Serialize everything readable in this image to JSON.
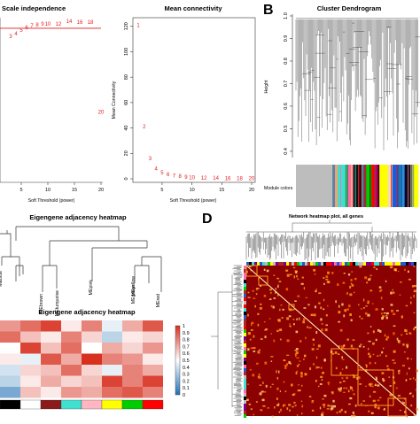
{
  "panel_labels": {
    "b": "B",
    "d": "D"
  },
  "chart_data": [
    {
      "id": "scale-independence",
      "type": "scatter",
      "title": "Scale independence",
      "xlabel": "Soft Threshold (power)",
      "x_ticks": [
        "5",
        "10",
        "15",
        "20"
      ],
      "xlim": [
        1,
        20
      ],
      "ylim": [
        -0.9,
        0.97
      ],
      "cutoff_line": 0.85,
      "points": [
        {
          "x": 3,
          "y": 0.76
        },
        {
          "x": 4,
          "y": 0.79
        },
        {
          "x": 5,
          "y": 0.83
        },
        {
          "x": 6,
          "y": 0.86
        },
        {
          "x": 7,
          "y": 0.88
        },
        {
          "x": 8,
          "y": 0.89
        },
        {
          "x": 9,
          "y": 0.9
        },
        {
          "x": 10,
          "y": 0.9
        },
        {
          "x": 12,
          "y": 0.9
        },
        {
          "x": 14,
          "y": 0.93
        },
        {
          "x": 16,
          "y": 0.92
        },
        {
          "x": 18,
          "y": 0.92
        },
        {
          "x": 20,
          "y": -0.1
        }
      ],
      "point_color": "#e31a1c",
      "line_color": "#e31a1c"
    },
    {
      "id": "mean-connectivity",
      "type": "scatter",
      "title": "Mean connectivity",
      "xlabel": "Soft Threshold (power)",
      "ylabel": "Mean Connectivity",
      "x_ticks": [
        "5",
        "10",
        "15",
        "20"
      ],
      "y_ticks": [
        "0",
        "20",
        "40",
        "60",
        "80",
        "100",
        "120"
      ],
      "xlim": [
        1,
        20
      ],
      "ylim": [
        0,
        124
      ],
      "points": [
        {
          "x": 1,
          "y": 121
        },
        {
          "x": 2,
          "y": 41
        },
        {
          "x": 3,
          "y": 16
        },
        {
          "x": 4,
          "y": 8
        },
        {
          "x": 5,
          "y": 5
        },
        {
          "x": 6,
          "y": 3.5
        },
        {
          "x": 7,
          "y": 2.5
        },
        {
          "x": 8,
          "y": 2
        },
        {
          "x": 9,
          "y": 1.5
        },
        {
          "x": 10,
          "y": 1.2
        },
        {
          "x": 12,
          "y": 0.8
        },
        {
          "x": 14,
          "y": 0.6
        },
        {
          "x": 16,
          "y": 0.5
        },
        {
          "x": 18,
          "y": 0.4
        },
        {
          "x": 20,
          "y": 0.3
        }
      ],
      "point_color": "#e31a1c"
    },
    {
      "id": "cluster-dendrogram",
      "type": "dendrogram",
      "title": "Cluster Dendrogram",
      "ylabel": "Height",
      "y_ticks": [
        "0.4",
        "0.5",
        "0.6",
        "0.7",
        "0.8",
        "0.9",
        "1.0"
      ],
      "ylim": [
        0.38,
        1.0
      ],
      "color_row_label": "Module colors",
      "module_colors": [
        {
          "color": "#bdbdbd",
          "weight": 14
        },
        {
          "color": "#7b68ee",
          "weight": 1
        },
        {
          "color": "#f4a460",
          "weight": 1
        },
        {
          "color": "#40e0d0",
          "weight": 3
        },
        {
          "color": "#228b22",
          "weight": 1
        },
        {
          "color": "#ff69b4",
          "weight": 2
        },
        {
          "color": "#111111",
          "weight": 3
        },
        {
          "color": "#a52a2a",
          "weight": 2
        },
        {
          "color": "#00cc00",
          "weight": 2
        },
        {
          "color": "#ff0000",
          "weight": 2
        },
        {
          "color": "#800080",
          "weight": 1
        },
        {
          "color": "#ffff00",
          "weight": 3
        },
        {
          "color": "#f5deb3",
          "weight": 2
        },
        {
          "color": "#1e5bd6",
          "weight": 5
        },
        {
          "color": "#111111",
          "weight": 2
        },
        {
          "color": "#87ceeb",
          "weight": 1
        },
        {
          "color": "#ffff00",
          "weight": 2
        }
      ]
    },
    {
      "id": "eigengene-dendrogram",
      "type": "dendrogram",
      "title": "Eigengene adjacency heatmap",
      "leaves": [
        "MEblue",
        "MEbrown",
        "MEturquoise",
        "MEpink",
        "MEyellow",
        "MEgreen",
        "MEred"
      ]
    },
    {
      "id": "eigengene-heatmap",
      "type": "heatmap",
      "title": "Eigengene adjacency heatmap",
      "colorbar_ticks": [
        "1",
        "0.9",
        "0.8",
        "0.7",
        "0.6",
        "0.5",
        "0.4",
        "0.3",
        "0.2",
        "0.1",
        "0"
      ],
      "colorbar_range": [
        0,
        1
      ],
      "module_strip": [
        "#000000",
        "#ffffff",
        "#8b1a1a",
        "#40e0d0",
        "#ffb6c1",
        "#ffff00",
        "#00cc00",
        "#ff0000"
      ],
      "values": [
        [
          0.75,
          0.85,
          0.95,
          0.55,
          0.8,
          0.45,
          0.7,
          0.9
        ],
        [
          0.85,
          0.65,
          0.55,
          0.8,
          0.6,
          0.35,
          0.55,
          0.6
        ],
        [
          0.5,
          0.95,
          0.65,
          0.85,
          0.5,
          0.7,
          0.6,
          0.75
        ],
        [
          0.55,
          0.45,
          0.9,
          0.7,
          1.0,
          0.8,
          0.75,
          0.55
        ],
        [
          0.4,
          0.6,
          0.65,
          0.85,
          0.6,
          0.45,
          0.8,
          0.7
        ],
        [
          0.35,
          0.55,
          0.7,
          0.6,
          0.65,
          0.95,
          0.8,
          0.95
        ],
        [
          0.2,
          0.65,
          0.55,
          0.75,
          0.7,
          0.85,
          0.9,
          0.8
        ]
      ]
    },
    {
      "id": "network-heatmap",
      "type": "heatmap",
      "title": "Network heatmap plot, all genes",
      "colors": {
        "low": "#ffffc8",
        "mid": "#ff9a1f",
        "high": "#8b0000"
      }
    }
  ]
}
